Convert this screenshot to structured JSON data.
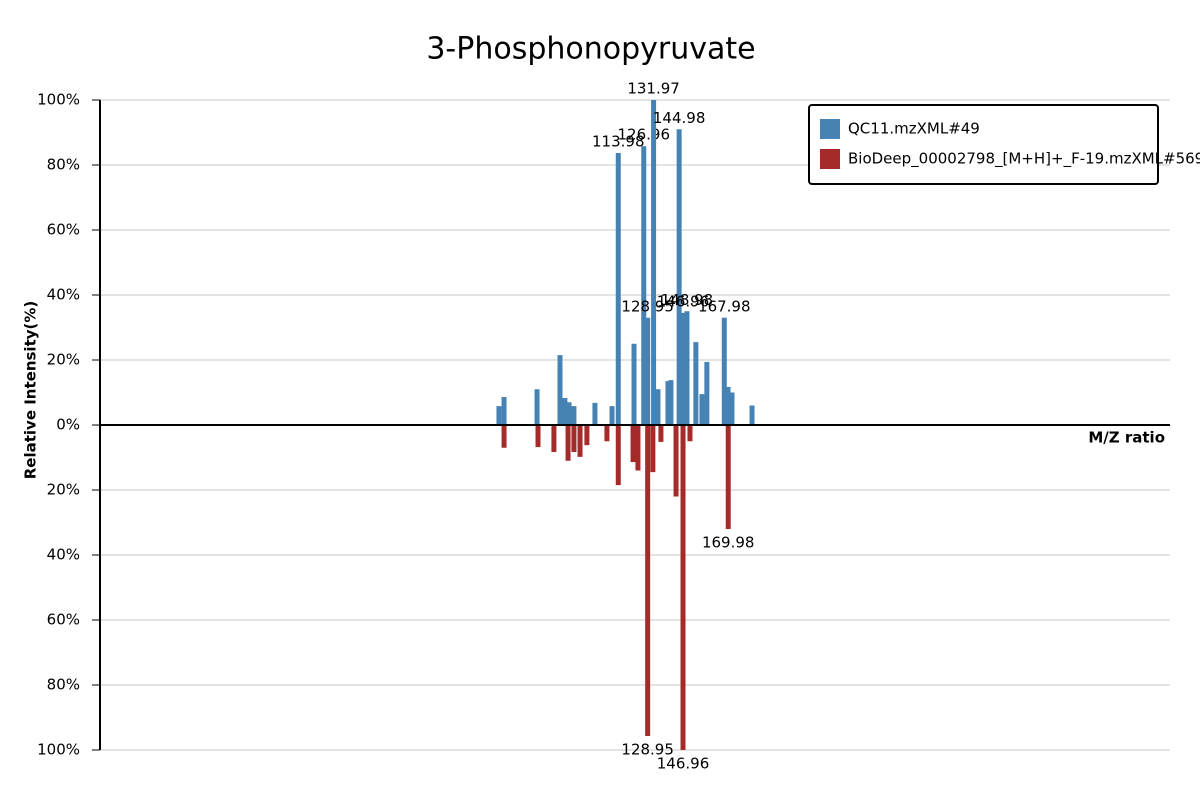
{
  "chart_data": {
    "type": "mirror",
    "title": "3-Phosphonopyruvate",
    "x_label": "M/Z ratio",
    "y_label": "Relative Intensity(%)",
    "xlim": [
      -150,
      395
    ],
    "ylim": [
      -100,
      100
    ],
    "yticks": [
      {
        "value": 100,
        "label": "100%"
      },
      {
        "value": 80,
        "label": "80%"
      },
      {
        "value": 60,
        "label": "60%"
      },
      {
        "value": 40,
        "label": "40%"
      },
      {
        "value": 20,
        "label": "20%"
      },
      {
        "value": 0,
        "label": "0%"
      },
      {
        "value": -20,
        "label": "20%"
      },
      {
        "value": -40,
        "label": "40%"
      },
      {
        "value": -60,
        "label": "60%"
      },
      {
        "value": -80,
        "label": "80%"
      },
      {
        "value": -100,
        "label": "100%"
      }
    ],
    "grid": true,
    "legend_position": "top-right",
    "series": [
      {
        "name": "QC11.mzXML#49",
        "color": "#4682b4",
        "x": [
          53.2,
          55.8,
          72.6,
          84.3,
          86.8,
          88.9,
          91.4,
          102.1,
          110.8,
          113.98,
          122,
          126.96,
          128.95,
          131.97,
          134.2,
          139.3,
          140.8,
          144.98,
          146.96,
          148.98,
          153.5,
          156.6,
          159.1,
          167.98,
          169.9,
          171.9,
          182.1
        ],
        "values": [
          5.8,
          8.6,
          11,
          21.5,
          8.3,
          7,
          5.8,
          6.8,
          5.8,
          83.7,
          25,
          85.8,
          33,
          100,
          11,
          13.5,
          13.8,
          91,
          34.5,
          35,
          25.5,
          9.5,
          19.4,
          33,
          11.7,
          10,
          6
        ]
      },
      {
        "name": "BioDeep_00002798_[M+H]+_F-19.mzXML#569",
        "color": "#a52a2a",
        "x": [
          55.8,
          73.1,
          81.2,
          88.4,
          91.4,
          94.5,
          98,
          108.2,
          113.98,
          121.5,
          124,
          128.95,
          131.6,
          135.7,
          143.4,
          146.96,
          150.5,
          169.98
        ],
        "values": [
          -7,
          -6.8,
          -8.3,
          -11,
          -8.3,
          -9.8,
          -6.2,
          -5,
          -18.5,
          -11.4,
          -14,
          -95.7,
          -14.5,
          -5.2,
          -22,
          -100,
          -5,
          -32
        ]
      }
    ]
  }
}
